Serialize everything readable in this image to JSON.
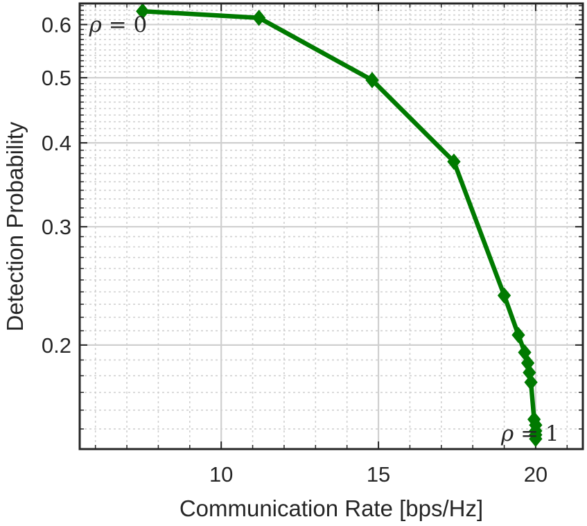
{
  "chart_data": {
    "type": "line",
    "xlabel": "Communication Rate [bps/Hz]",
    "ylabel": "Detection Probability",
    "xlim": [
      5.5,
      21.5
    ],
    "ylim": [
      0.14,
      0.645
    ],
    "y_scale": "log",
    "grid": true,
    "grid_minor": true,
    "x_ticks": [
      10,
      15,
      20
    ],
    "x_tick_labels": [
      "10",
      "15",
      "20"
    ],
    "x_minor_ticks": [
      6,
      7,
      8,
      9,
      11,
      12,
      13,
      14,
      16,
      17,
      18,
      19,
      21
    ],
    "y_ticks": [
      0.2,
      0.3,
      0.4,
      0.5,
      0.6
    ],
    "y_tick_labels": [
      "0.2",
      "0.3",
      "0.4",
      "0.5",
      "0.6"
    ],
    "y_minor_ticks": [
      0.15,
      0.16,
      0.17,
      0.18,
      0.19,
      0.21,
      0.22,
      0.23,
      0.24,
      0.25,
      0.26,
      0.27,
      0.28,
      0.29,
      0.31,
      0.32,
      0.33,
      0.34,
      0.35,
      0.36,
      0.37,
      0.38,
      0.39,
      0.41,
      0.42,
      0.43,
      0.44,
      0.45,
      0.46,
      0.47,
      0.48,
      0.49,
      0.51,
      0.52,
      0.53,
      0.54,
      0.55,
      0.56,
      0.57,
      0.58,
      0.59,
      0.61,
      0.62,
      0.63,
      0.64
    ],
    "series": [
      {
        "color": "#007a00",
        "marker": "diamond",
        "x": [
          7.5,
          11.2,
          14.8,
          17.4,
          19.0,
          19.45,
          19.65,
          19.75,
          19.8,
          19.85,
          19.95,
          20.0,
          20.0,
          20.0,
          20.0
        ],
        "y": [
          0.628,
          0.614,
          0.496,
          0.375,
          0.237,
          0.207,
          0.195,
          0.188,
          0.182,
          0.176,
          0.155,
          0.152,
          0.149,
          0.147,
          0.145
        ]
      }
    ],
    "annotations": [
      {
        "symbol": "ρ",
        "rest": " = 0",
        "x": 5.8,
        "y": 0.585
      },
      {
        "symbol": "ρ",
        "rest": " = 1",
        "x": 18.9,
        "y": 0.144
      }
    ]
  }
}
